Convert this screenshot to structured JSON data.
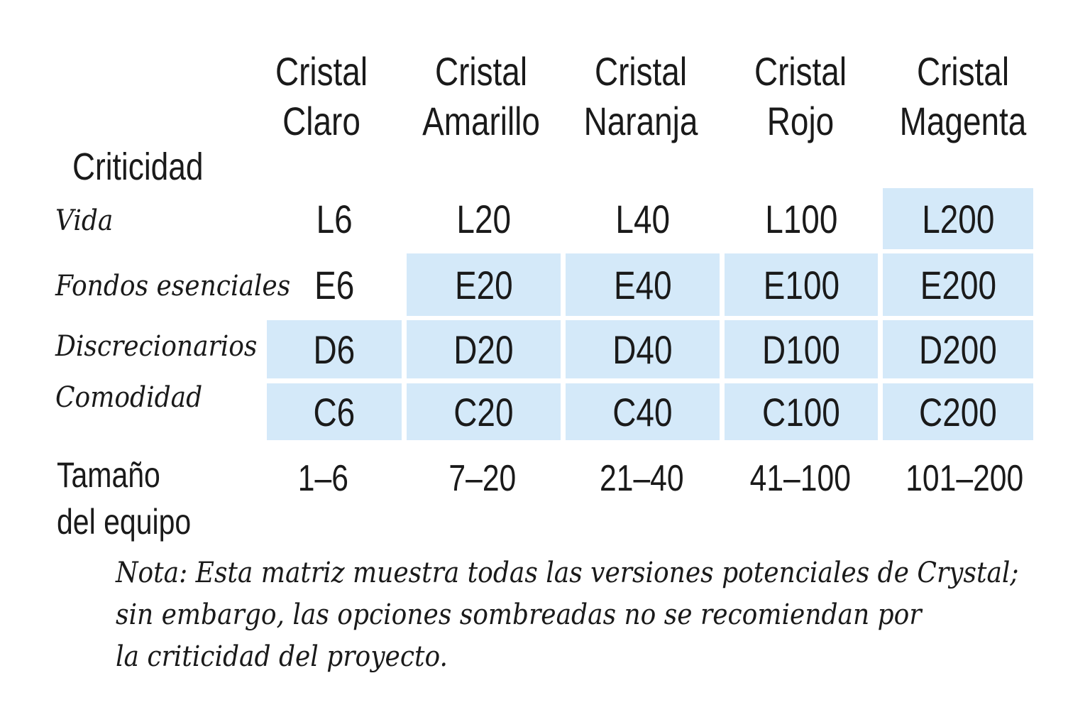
{
  "matrix": {
    "criticality_heading": "Criticidad",
    "columns": [
      {
        "line1": "Cristal",
        "line2": "Claro"
      },
      {
        "line1": "Cristal",
        "line2": "Amarillo"
      },
      {
        "line1": "Cristal",
        "line2": "Naranja"
      },
      {
        "line1": "Cristal",
        "line2": "Rojo"
      },
      {
        "line1": "Cristal",
        "line2": "Magenta"
      }
    ],
    "rows": [
      {
        "label": "Vida",
        "cells": [
          {
            "text": "L6",
            "shaded": false
          },
          {
            "text": "L20",
            "shaded": false
          },
          {
            "text": "L40",
            "shaded": false
          },
          {
            "text": "L100",
            "shaded": false
          },
          {
            "text": "L200",
            "shaded": true
          }
        ]
      },
      {
        "label": "Fondos esenciales",
        "cells": [
          {
            "text": "E6",
            "shaded": false
          },
          {
            "text": "E20",
            "shaded": true
          },
          {
            "text": "E40",
            "shaded": true
          },
          {
            "text": "E100",
            "shaded": true
          },
          {
            "text": "E200",
            "shaded": true
          }
        ]
      },
      {
        "label": "Discrecionarios",
        "cells": [
          {
            "text": "D6",
            "shaded": true
          },
          {
            "text": "D20",
            "shaded": true
          },
          {
            "text": "D40",
            "shaded": true
          },
          {
            "text": "D100",
            "shaded": true
          },
          {
            "text": "D200",
            "shaded": true
          }
        ]
      },
      {
        "label": "Comodidad",
        "cells": [
          {
            "text": "C6",
            "shaded": true
          },
          {
            "text": "C20",
            "shaded": true
          },
          {
            "text": "C40",
            "shaded": true
          },
          {
            "text": "C100",
            "shaded": true
          },
          {
            "text": "C200",
            "shaded": true
          }
        ]
      }
    ],
    "team_size_label": {
      "line1": "Tamaño",
      "line2": "del equipo"
    },
    "team_sizes": [
      "1–6",
      "7–20",
      "21–40",
      "41–100",
      "101–200"
    ],
    "shade_color": "#d4e9f9"
  },
  "note": {
    "line1": "Nota: Esta matriz muestra todas las versiones potenciales de Crystal;",
    "line2": "sin embargo, las opciones sombreadas no se recomiendan por",
    "line3": "la criticidad del proyecto."
  }
}
